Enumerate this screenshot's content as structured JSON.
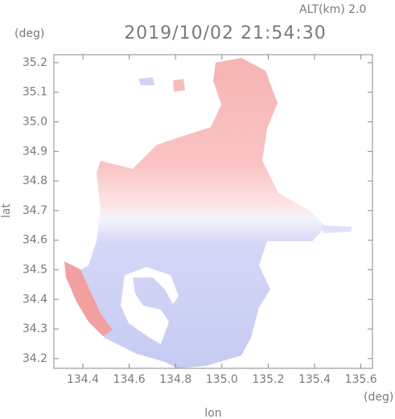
{
  "chart_data": {
    "type": "map",
    "title": "2019/10/02 21:54:30",
    "subtitle": "ALT(km) 2.0",
    "x_label": "lon",
    "y_label": "lat",
    "x_unit": "(deg)",
    "y_unit": "(deg)",
    "xlim": [
      134.275,
      135.65
    ],
    "ylim": [
      34.167,
      35.227
    ],
    "xticks": [
      134.4,
      134.6,
      134.8,
      {
        "value": 135.0,
        "label": "135.0"
      },
      135.2,
      135.4,
      135.6
    ],
    "yticks": [
      34.2,
      34.3,
      34.4,
      34.5,
      34.6,
      34.7,
      34.8,
      34.9,
      {
        "value": 35.0,
        "label": "35.0"
      },
      35.1,
      35.2
    ]
  }
}
